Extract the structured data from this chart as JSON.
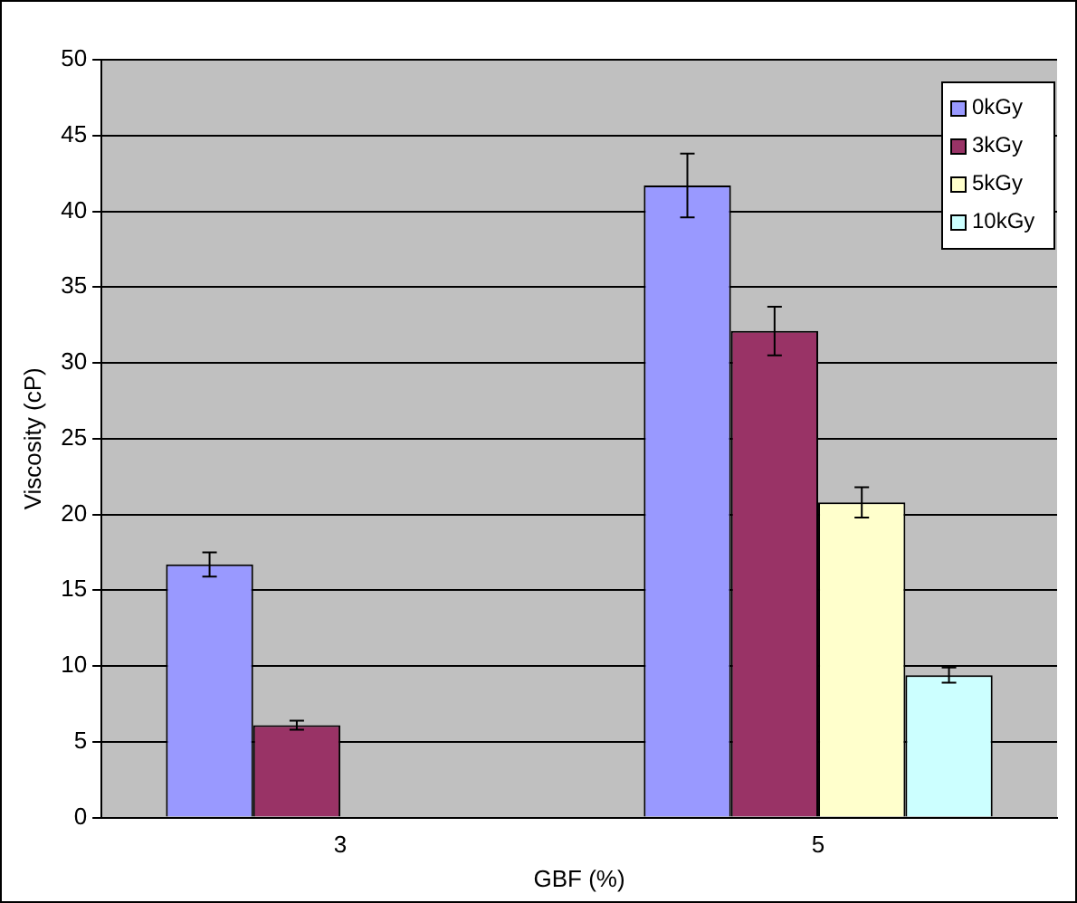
{
  "chart_data": {
    "type": "bar",
    "xlabel": "GBF (%)",
    "ylabel": "Viscosity (cP)",
    "categories": [
      "3",
      "5"
    ],
    "series": [
      {
        "name": "0kGy",
        "color": "#9999ff",
        "values": [
          16.7,
          41.7
        ],
        "errors": [
          0.8,
          2.1
        ]
      },
      {
        "name": "3kGy",
        "color": "#993366",
        "values": [
          6.1,
          32.1
        ],
        "errors": [
          0.3,
          1.6
        ]
      },
      {
        "name": "5kGy",
        "color": "#ffffcc",
        "values": [
          null,
          20.8
        ],
        "errors": [
          null,
          1.0
        ]
      },
      {
        "name": "10kGy",
        "color": "#ccffff",
        "values": [
          null,
          9.4
        ],
        "errors": [
          null,
          0.5
        ]
      }
    ],
    "ylim": [
      0,
      50
    ],
    "yticks": [
      0,
      5,
      10,
      15,
      20,
      25,
      30,
      35,
      40,
      45,
      50
    ],
    "grid": "y",
    "legend": "top right"
  }
}
